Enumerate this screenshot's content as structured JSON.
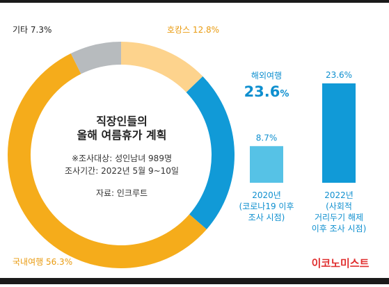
{
  "chart_data": [
    {
      "type": "pie",
      "title": "직장인들의 올해 여름휴가 계획",
      "notes": [
        "※조사대상: 성인남녀 989명",
        "조사기간: 2022년 5월 9~10일",
        "자료: 인크루트"
      ],
      "slices": [
        {
          "label": "호캉스",
          "value": 12.8,
          "value_text": "12.8%",
          "color": "#fdd38d"
        },
        {
          "label": "해외여행",
          "value": 23.6,
          "value_text": "23.6%",
          "color": "#119ad7"
        },
        {
          "label": "국내여행",
          "value": 56.3,
          "value_text": "56.3%",
          "color": "#f5ac1b"
        },
        {
          "label": "기타",
          "value": 7.3,
          "value_text": "7.3%",
          "color": "#b7bbbe"
        }
      ]
    },
    {
      "type": "bar",
      "categories": [
        "2020년 (코로나19 이후 조사 시점)",
        "2022년 (사회적 거리두기 해제 이후 조사 시점)"
      ],
      "category_lines": [
        [
          "2020년",
          "(코로나19 이후",
          "조사 시점)"
        ],
        [
          "2022년",
          "(사회적",
          "거리두기 해제",
          "이후 조사 시점)"
        ]
      ],
      "values": [
        8.7,
        23.6
      ],
      "value_labels": [
        "8.7%",
        "23.6%"
      ],
      "colors": [
        "#56c2e6",
        "#119ad7"
      ],
      "ylim": [
        0,
        23.6
      ]
    }
  ],
  "callout": {
    "label": "해외여행",
    "value": "23.6",
    "unit": "%"
  },
  "brand": "이코노미스트",
  "colors": {
    "text": "#222222",
    "label_orange": "#e99b10",
    "label_blue": "#0e8fcf",
    "brand_red": "#e02d2d"
  }
}
